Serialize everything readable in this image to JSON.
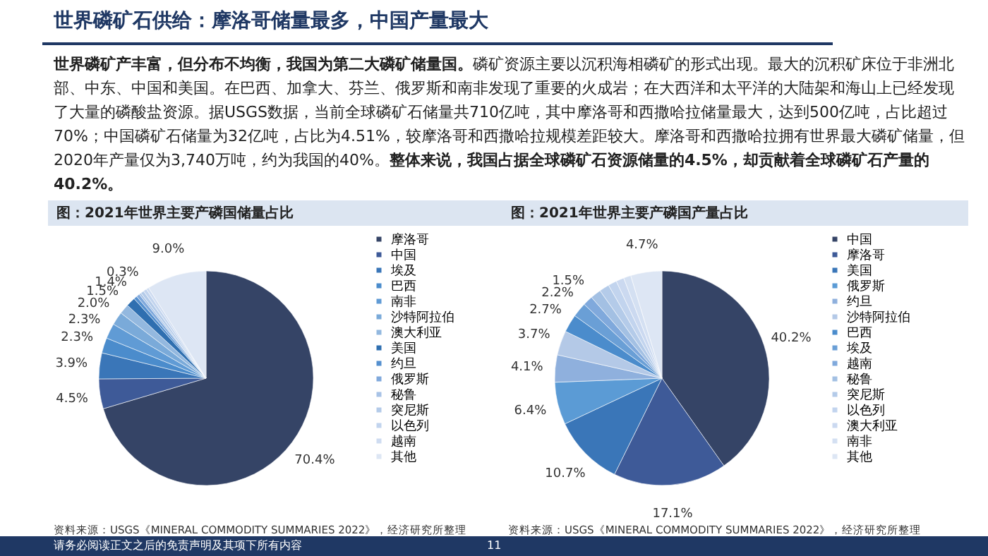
{
  "chart_data": [
    {
      "type": "pie",
      "title": "图：2021年世界主要产磷国储量占比",
      "categories": [
        "摩洛哥",
        "中国",
        "埃及",
        "巴西",
        "南非",
        "沙特阿拉伯",
        "澳大利亚",
        "美国",
        "约旦",
        "俄罗斯",
        "秘鲁",
        "突尼斯",
        "以色列",
        "越南",
        "其他"
      ],
      "values": [
        70.4,
        4.5,
        3.9,
        2.3,
        2.3,
        2.0,
        1.5,
        1.4,
        0.5,
        0.5,
        0.3,
        0.5,
        0.5,
        0.4,
        9.0
      ],
      "value_labels": [
        "70.4%",
        "4.5%",
        "3.9%",
        "2.3%",
        "2.3%",
        "2.0%",
        "1.5%",
        "1.4%",
        null,
        null,
        "0.3%",
        null,
        null,
        null,
        "9.0%"
      ],
      "colors": [
        "#354466",
        "#3e5a98",
        "#3a76b8",
        "#4b8ccc",
        "#609bd5",
        "#7aaad9",
        "#93b8df",
        "#2f6fb0",
        "#5590cf",
        "#80a9dc",
        "#a8c3e6",
        "#b4cbe9",
        "#c2d4ee",
        "#cfdcf1",
        "#dde6f4"
      ],
      "legend": "right",
      "annotations": [
        "世界磷矿石供给：摩洛哥储量最多，中国产量最大",
        "世界磷矿产丰富，但分布不均衡，我国为第二大磷矿储量国。",
        "磷矿资源主要以沉积海相磷矿的形式出现。最大的沉积矿床位于非洲北部、中东、中国和美国。在巴西、加拿大、芬兰、俄罗斯和南非发现了重要的火成岩；在大西洋和太平洋的大陆架和海山上已经发现了大量的磷酸盐资源。据USGS数据，当前全球磷矿石储量共710亿吨，其中摩洛哥和西撒哈拉储量最大，达到500亿吨，占比超过70%；中国磷矿石储量为32亿吨，占比为4.51%，较摩洛哥和西撒哈拉规模差距较大。摩洛哥和西撒哈拉拥有世界最大磷矿储量，但2020年产量仅为3,740万吨，约为我国的40%。",
        "整体来说，我国占据全球磷矿石资源储量的4.5%，却贡献着全球磷矿石产量的40.2%。",
        "资料来源：USGS《MINERAL COMMODITY SUMMARIES 2022》，经济研究所整理"
      ]
    },
    {
      "type": "pie",
      "title": "图：2021年世界主要产磷国产量占比",
      "categories": [
        "中国",
        "摩洛哥",
        "美国",
        "俄罗斯",
        "约旦",
        "沙特阿拉伯",
        "巴西",
        "埃及",
        "越南",
        "秘鲁",
        "突尼斯",
        "以色列",
        "澳大利亚",
        "南非",
        "其他"
      ],
      "values": [
        40.2,
        17.1,
        10.7,
        6.4,
        4.1,
        3.7,
        2.7,
        2.2,
        1.5,
        1.6,
        1.5,
        1.3,
        1.2,
        1.1,
        4.7
      ],
      "value_labels": [
        "40.2%",
        "17.1%",
        "10.7%",
        "6.4%",
        "4.1%",
        "3.7%",
        "2.7%",
        "2.2%",
        "1.5%",
        null,
        null,
        null,
        null,
        null,
        "4.7%"
      ],
      "colors": [
        "#354466",
        "#3e5a98",
        "#3a76b8",
        "#5b9bd5",
        "#8fb0dd",
        "#b4c9e7",
        "#4b8ccc",
        "#6a9fd6",
        "#80a9dc",
        "#a3c0e3",
        "#b4cbe9",
        "#c2d4ee",
        "#cbd9f0",
        "#d4e0f2",
        "#dde6f4"
      ],
      "legend": "right",
      "annotations": [
        "资料来源：USGS《MINERAL COMMODITY SUMMARIES 2022》，经济研究所整理",
        "请务必阅读正文之后的免责声明及其项下所有内容",
        "11"
      ]
    }
  ]
}
